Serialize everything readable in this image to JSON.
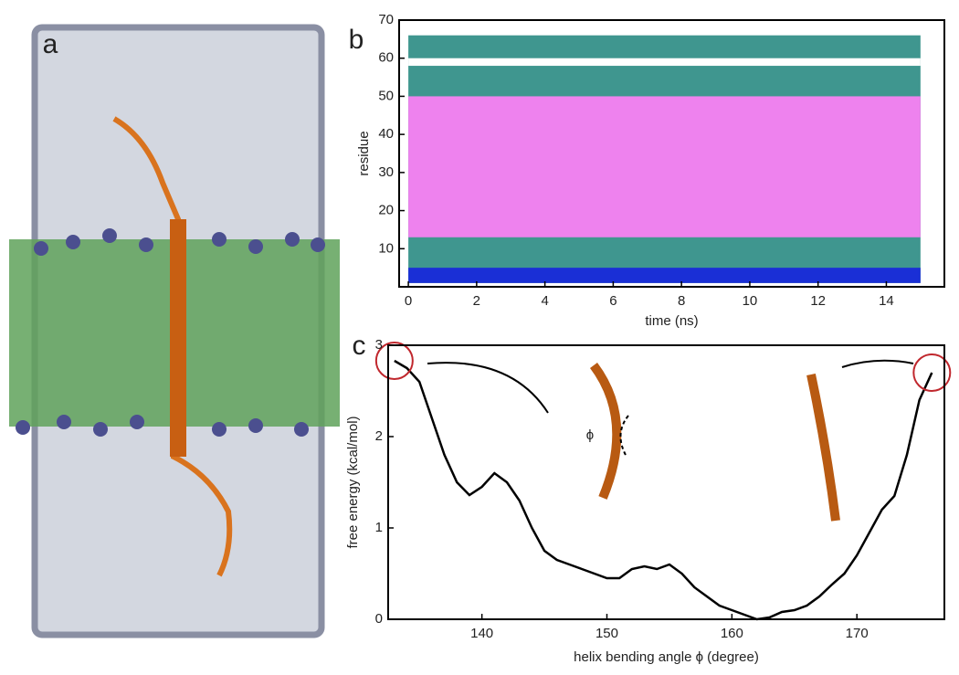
{
  "chart_data": [
    {
      "type": "illustration",
      "panel_label": "a"
    },
    {
      "type": "band",
      "panel_label": "b",
      "ylabel": "residue",
      "xlabel": "time (ns)",
      "xlim": [
        -0.27,
        15.7
      ],
      "xticks": [
        0,
        2,
        4,
        6,
        8,
        10,
        12,
        14
      ],
      "ylim": [
        0,
        70
      ],
      "yticks": [
        10,
        20,
        30,
        40,
        50,
        60,
        70
      ],
      "x_range": [
        0,
        15
      ],
      "bands": [
        {
          "color": "#3f968f",
          "y0": 1,
          "y1": 66
        },
        {
          "color": "#ffffff",
          "y0": 58,
          "y1": 60
        },
        {
          "color": "#ee82ee",
          "y0": 13,
          "y1": 50
        },
        {
          "color": "#1a2fd6",
          "y0": 1,
          "y1": 5
        }
      ]
    },
    {
      "type": "line",
      "panel_label": "c",
      "ylabel": "free energy (kcal/mol)",
      "xlabel": "helix bending angle ϕ (degree)",
      "xlim": [
        132.5,
        177
      ],
      "xticks": [
        140,
        150,
        160,
        170
      ],
      "ylim": [
        0,
        3
      ],
      "yticks": [
        0,
        1,
        2,
        3
      ],
      "annotations": [
        "ϕ"
      ],
      "color": "#000000",
      "x": [
        133,
        134,
        135,
        136,
        137,
        138,
        139,
        140,
        141,
        142,
        143,
        144,
        145,
        146,
        147,
        148,
        149,
        150,
        151,
        152,
        153,
        154,
        155,
        156,
        157,
        158,
        159,
        160,
        161,
        162,
        163,
        164,
        165,
        166,
        167,
        168,
        169,
        170,
        171,
        172,
        173,
        174,
        175,
        176
      ],
      "values": [
        2.83,
        2.75,
        2.6,
        2.2,
        1.8,
        1.5,
        1.36,
        1.45,
        1.6,
        1.5,
        1.3,
        1.0,
        0.75,
        0.65,
        0.6,
        0.55,
        0.5,
        0.45,
        0.45,
        0.55,
        0.58,
        0.55,
        0.6,
        0.5,
        0.35,
        0.25,
        0.15,
        0.1,
        0.05,
        0.0,
        0.02,
        0.08,
        0.1,
        0.15,
        0.25,
        0.38,
        0.5,
        0.7,
        0.95,
        1.2,
        1.35,
        1.8,
        2.4,
        2.7
      ]
    }
  ]
}
